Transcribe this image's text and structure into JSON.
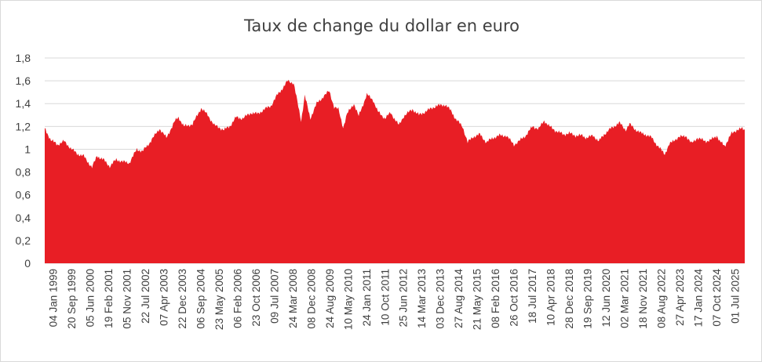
{
  "chart_data": {
    "type": "area",
    "title": "Taux de change du dollar en euro",
    "xlabel": "",
    "ylabel": "",
    "ylim": [
      0,
      1.8
    ],
    "y_ticks": [
      "0",
      "0,2",
      "0,4",
      "0,6",
      "0,8",
      "1",
      "1,2",
      "1,4",
      "1,6",
      "1,8"
    ],
    "x_tick_labels": [
      "04 Jan 1999",
      "20 Sep 1999",
      "05 Jun 2000",
      "19 Feb 2001",
      "05 Nov 2001",
      "22 Jul 2002",
      "07 Apr 2003",
      "22 Dec 2003",
      "06 Sep 2004",
      "23 May 2005",
      "06 Feb 2006",
      "23 Oct 2006",
      "09 Jul 2007",
      "24 Mar 2008",
      "08 Dec 2008",
      "24 Aug 2009",
      "10 May 2010",
      "24 Jan 2011",
      "10 Oct 2011",
      "25 Jun 2012",
      "14 Mar 2013",
      "03 Dec 2013",
      "27 Aug 2014",
      "21 May 2015",
      "08 Feb 2016",
      "26 Oct 2016",
      "18 Jul 2017",
      "10 Apr 2018",
      "28 Dec 2018",
      "19 Sep 2019",
      "12 Jun 2020",
      "02 Mar 2021",
      "18 Nov 2021",
      "08 Aug 2022",
      "27 Apr 2023",
      "17 Jan 2024",
      "07 Oct 2024",
      "01 Jul 2025"
    ],
    "grid": true,
    "legend": "none",
    "color": "#e81e25",
    "series": [
      {
        "x": [
          "1999-01-04",
          "1999-04-01",
          "1999-07-01",
          "1999-10-01",
          "2000-01-01",
          "2000-04-01",
          "2000-07-01",
          "2000-10-26",
          "2001-01-05",
          "2001-04-01",
          "2001-07-01",
          "2001-10-01",
          "2002-01-01",
          "2002-04-01",
          "2002-07-15",
          "2002-10-01",
          "2003-01-01",
          "2003-05-27",
          "2003-09-01",
          "2003-12-31",
          "2004-02-18",
          "2004-05-01",
          "2004-09-01",
          "2004-12-30",
          "2005-04-01",
          "2005-07-01",
          "2005-11-15",
          "2006-02-01",
          "2006-05-01",
          "2006-08-01",
          "2006-12-01",
          "2007-03-01",
          "2007-06-01",
          "2007-09-01",
          "2007-11-23",
          "2008-03-01",
          "2008-04-22",
          "2008-07-15",
          "2008-10-27",
          "2008-12-18",
          "2009-03-04",
          "2009-06-01",
          "2009-09-01",
          "2009-11-25",
          "2010-02-01",
          "2010-04-01",
          "2010-06-07",
          "2010-08-01",
          "2010-11-04",
          "2011-01-10",
          "2011-05-04",
          "2011-08-01",
          "2011-10-04",
          "2012-01-13",
          "2012-04-01",
          "2012-07-24",
          "2012-10-01",
          "2013-02-01",
          "2013-05-01",
          "2013-08-01",
          "2013-12-27",
          "2014-05-06",
          "2014-08-01",
          "2014-10-01",
          "2015-01-01",
          "2015-03-13",
          "2015-06-01",
          "2015-09-01",
          "2015-12-01",
          "2016-03-01",
          "2016-06-01",
          "2016-09-01",
          "2016-12-20",
          "2017-03-01",
          "2017-06-01",
          "2017-09-08",
          "2017-12-01",
          "2018-02-16",
          "2018-05-01",
          "2018-08-01",
          "2018-11-12",
          "2019-02-01",
          "2019-05-01",
          "2019-08-01",
          "2019-10-01",
          "2020-01-01",
          "2020-03-20",
          "2020-06-01",
          "2020-09-01",
          "2020-12-01",
          "2021-01-06",
          "2021-03-31",
          "2021-05-25",
          "2021-08-01",
          "2021-11-01",
          "2022-01-01",
          "2022-04-01",
          "2022-07-01",
          "2022-09-28",
          "2022-12-01",
          "2023-02-01",
          "2023-04-01",
          "2023-07-18",
          "2023-10-03",
          "2023-12-27",
          "2024-04-16",
          "2024-07-01",
          "2024-09-25",
          "2024-11-01",
          "2025-01-13",
          "2025-03-01",
          "2025-04-21",
          "2025-07-01",
          "2025-09-16",
          "2025-10-20"
        ],
        "y": [
          1.18,
          1.08,
          1.04,
          1.07,
          1.01,
          0.96,
          0.94,
          0.84,
          0.94,
          0.91,
          0.85,
          0.91,
          0.89,
          0.88,
          1.0,
          0.98,
          1.05,
          1.18,
          1.1,
          1.25,
          1.28,
          1.2,
          1.22,
          1.36,
          1.3,
          1.21,
          1.17,
          1.2,
          1.28,
          1.27,
          1.32,
          1.31,
          1.35,
          1.38,
          1.47,
          1.55,
          1.6,
          1.58,
          1.25,
          1.47,
          1.27,
          1.4,
          1.46,
          1.51,
          1.37,
          1.35,
          1.19,
          1.31,
          1.4,
          1.29,
          1.48,
          1.43,
          1.33,
          1.27,
          1.32,
          1.21,
          1.29,
          1.35,
          1.3,
          1.33,
          1.38,
          1.39,
          1.33,
          1.26,
          1.2,
          1.06,
          1.11,
          1.13,
          1.06,
          1.1,
          1.12,
          1.12,
          1.04,
          1.07,
          1.12,
          1.2,
          1.18,
          1.25,
          1.2,
          1.16,
          1.13,
          1.14,
          1.12,
          1.12,
          1.1,
          1.12,
          1.07,
          1.13,
          1.18,
          1.22,
          1.23,
          1.17,
          1.22,
          1.18,
          1.14,
          1.13,
          1.1,
          1.02,
          0.96,
          1.04,
          1.08,
          1.1,
          1.12,
          1.05,
          1.1,
          1.07,
          1.08,
          1.12,
          1.07,
          1.03,
          1.08,
          1.14,
          1.17,
          1.18,
          1.17
        ]
      }
    ]
  }
}
